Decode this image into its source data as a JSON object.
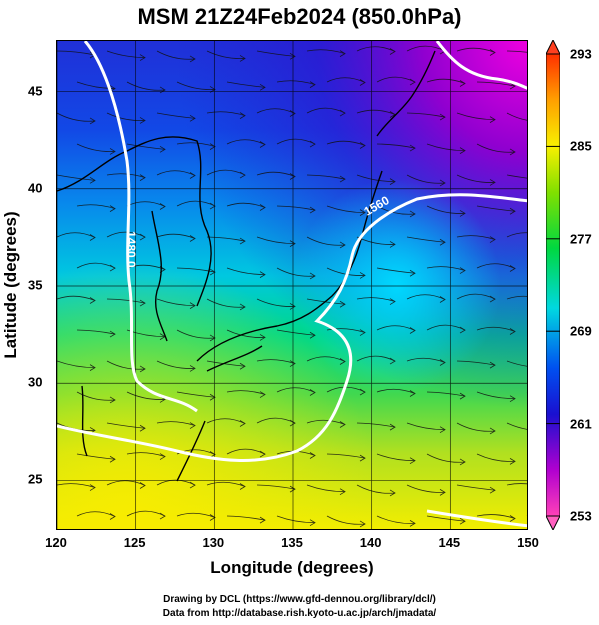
{
  "title": "MSM 21Z24Feb2024 (850.0hPa)",
  "chart_data": {
    "type": "heatmap",
    "title": "MSM 21Z24Feb2024 (850.0hPa)",
    "xlabel": "Longitude (degrees)",
    "ylabel": "Latitude  (degrees)",
    "xlim": [
      120,
      150
    ],
    "ylim": [
      22.4,
      47.6
    ],
    "x_ticks": [
      "120",
      "125",
      "130",
      "135",
      "140",
      "145",
      "150"
    ],
    "y_ticks": [
      "25",
      "30",
      "35",
      "40",
      "45"
    ],
    "colorbar": {
      "min": 253,
      "max": 293,
      "labels": [
        "293",
        "285",
        "277",
        "269",
        "261",
        "253"
      ],
      "colors": [
        "#e000d8",
        "#6a00c8",
        "#1020e0",
        "#0090e8",
        "#00d8d8",
        "#00d84a",
        "#a0e000",
        "#f0f000",
        "#ffa000",
        "#ff2000"
      ]
    },
    "contour_labels": [
      "1480.0",
      "1560"
    ],
    "grid": true
  },
  "credits": {
    "line1": "Drawing by DCL (https://www.gfd-dennou.org/library/dcl/)",
    "line2": "Data from http://database.rish.kyoto-u.ac.jp/arch/jmadata/"
  }
}
